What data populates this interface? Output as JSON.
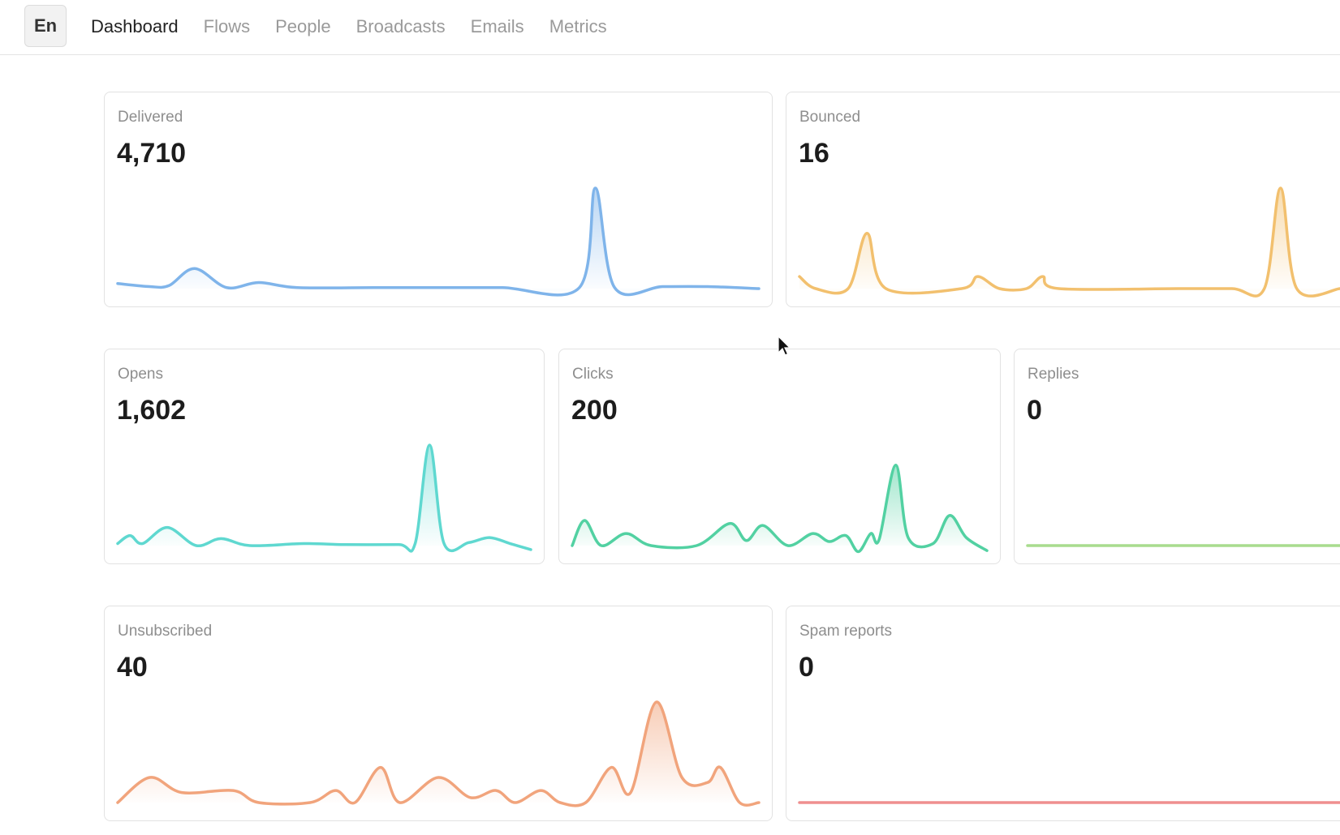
{
  "header": {
    "logo_text": "En",
    "nav": [
      {
        "label": "Dashboard",
        "active": true
      },
      {
        "label": "Flows",
        "active": false
      },
      {
        "label": "People",
        "active": false
      },
      {
        "label": "Broadcasts",
        "active": false
      },
      {
        "label": "Emails",
        "active": false
      },
      {
        "label": "Metrics",
        "active": false
      }
    ]
  },
  "cards": {
    "delivered": {
      "label": "Delivered",
      "value": "4,710",
      "color": "#7fb4ea",
      "points": [
        [
          0,
          0.05
        ],
        [
          0.05,
          0.02
        ],
        [
          0.08,
          0.03
        ],
        [
          0.12,
          0.2
        ],
        [
          0.17,
          0.01
        ],
        [
          0.22,
          0.06
        ],
        [
          0.28,
          0.01
        ],
        [
          0.4,
          0.01
        ],
        [
          0.5,
          0.01
        ],
        [
          0.6,
          0.01
        ],
        [
          0.72,
          0.01
        ],
        [
          0.745,
          1.0
        ],
        [
          0.775,
          0.01
        ],
        [
          0.85,
          0.02
        ],
        [
          0.92,
          0.02
        ],
        [
          1,
          0.0
        ]
      ]
    },
    "bounced": {
      "label": "Bounced",
      "value": "16",
      "color": "#f2c06e",
      "points": [
        [
          0,
          0.12
        ],
        [
          0.03,
          0.0
        ],
        [
          0.09,
          0.0
        ],
        [
          0.125,
          0.55
        ],
        [
          0.16,
          0.0
        ],
        [
          0.3,
          0.0
        ],
        [
          0.33,
          0.12
        ],
        [
          0.37,
          0.0
        ],
        [
          0.42,
          0.0
        ],
        [
          0.45,
          0.12
        ],
        [
          0.48,
          0.0
        ],
        [
          0.7,
          0.0
        ],
        [
          0.8,
          0.0
        ],
        [
          0.86,
          0.0
        ],
        [
          0.89,
          1.0
        ],
        [
          0.92,
          0.0
        ],
        [
          1,
          0.0
        ]
      ]
    },
    "opens": {
      "label": "Opens",
      "value": "1,602",
      "color": "#5fd8d0",
      "points": [
        [
          0,
          0.02
        ],
        [
          0.03,
          0.1
        ],
        [
          0.06,
          0.02
        ],
        [
          0.12,
          0.18
        ],
        [
          0.19,
          0.0
        ],
        [
          0.25,
          0.07
        ],
        [
          0.32,
          0.0
        ],
        [
          0.45,
          0.02
        ],
        [
          0.55,
          0.01
        ],
        [
          0.68,
          0.01
        ],
        [
          0.72,
          0.02
        ],
        [
          0.755,
          1.0
        ],
        [
          0.79,
          0.02
        ],
        [
          0.85,
          0.03
        ],
        [
          0.9,
          0.08
        ],
        [
          0.95,
          0.02
        ],
        [
          1,
          -0.04
        ]
      ]
    },
    "clicks": {
      "label": "Clicks",
      "value": "200",
      "color": "#52d1a2",
      "points": [
        [
          0,
          0.0
        ],
        [
          0.03,
          0.25
        ],
        [
          0.07,
          0.0
        ],
        [
          0.13,
          0.12
        ],
        [
          0.19,
          0.0
        ],
        [
          0.3,
          0.0
        ],
        [
          0.38,
          0.22
        ],
        [
          0.42,
          0.05
        ],
        [
          0.46,
          0.2
        ],
        [
          0.52,
          0.0
        ],
        [
          0.58,
          0.12
        ],
        [
          0.62,
          0.04
        ],
        [
          0.66,
          0.1
        ],
        [
          0.69,
          -0.06
        ],
        [
          0.72,
          0.12
        ],
        [
          0.74,
          0.06
        ],
        [
          0.78,
          0.8
        ],
        [
          0.81,
          0.08
        ],
        [
          0.87,
          0.02
        ],
        [
          0.91,
          0.3
        ],
        [
          0.95,
          0.08
        ],
        [
          1,
          -0.05
        ]
      ]
    },
    "replies": {
      "label": "Replies",
      "value": "0",
      "color": "#a8dc8e",
      "points": [
        [
          0,
          0.0
        ],
        [
          1,
          0.0
        ]
      ]
    },
    "unsubscribed": {
      "label": "Unsubscribed",
      "value": "40",
      "color": "#f1a47c",
      "points": [
        [
          0,
          0.0
        ],
        [
          0.05,
          0.25
        ],
        [
          0.1,
          0.1
        ],
        [
          0.18,
          0.12
        ],
        [
          0.22,
          0.0
        ],
        [
          0.3,
          0.0
        ],
        [
          0.34,
          0.12
        ],
        [
          0.37,
          0.0
        ],
        [
          0.41,
          0.35
        ],
        [
          0.44,
          0.0
        ],
        [
          0.5,
          0.25
        ],
        [
          0.55,
          0.05
        ],
        [
          0.59,
          0.12
        ],
        [
          0.62,
          0.0
        ],
        [
          0.66,
          0.12
        ],
        [
          0.69,
          0.0
        ],
        [
          0.73,
          0.0
        ],
        [
          0.77,
          0.35
        ],
        [
          0.8,
          0.1
        ],
        [
          0.84,
          1.0
        ],
        [
          0.88,
          0.25
        ],
        [
          0.92,
          0.2
        ],
        [
          0.94,
          0.35
        ],
        [
          0.97,
          0.0
        ],
        [
          1,
          0.0
        ]
      ]
    },
    "spam": {
      "label": "Spam reports",
      "value": "0",
      "color": "#ef8f8f",
      "points": [
        [
          0,
          0.0
        ],
        [
          1,
          0.0
        ]
      ]
    }
  }
}
